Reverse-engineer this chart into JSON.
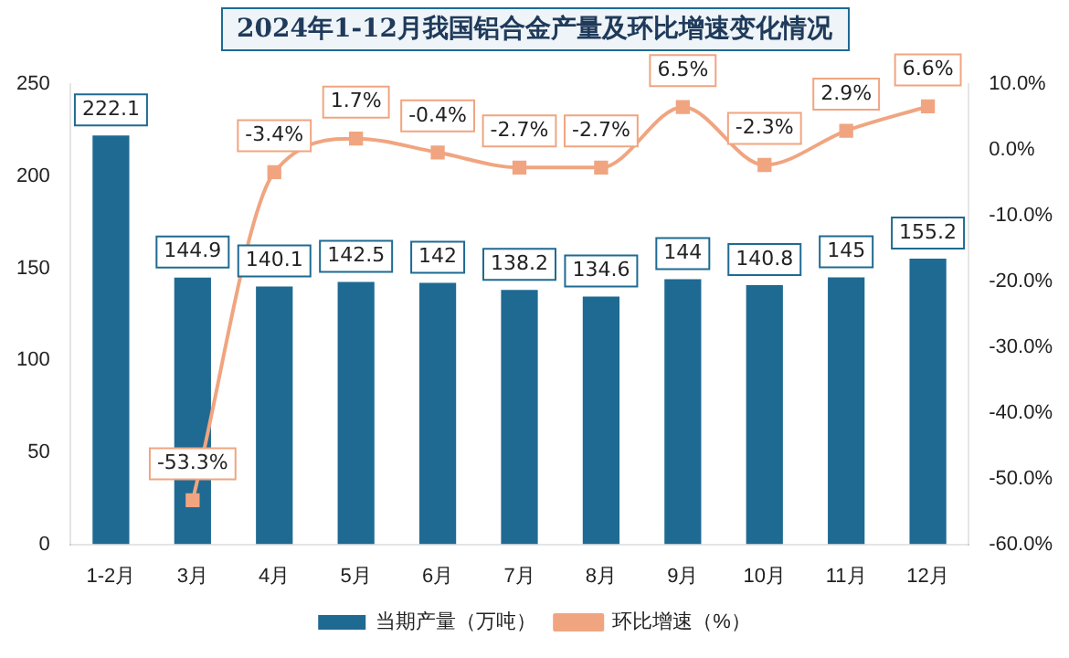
{
  "chart_data": {
    "type": "bar",
    "title": "2024年1-12月我国铝合金产量及环比增速变化情况",
    "categories": [
      "1-2月",
      "3月",
      "4月",
      "5月",
      "6月",
      "7月",
      "8月",
      "9月",
      "10月",
      "11月",
      "12月"
    ],
    "series": [
      {
        "name": "当期产量（万吨）",
        "color": "#1f6a92",
        "values": [
          222.1,
          144.9,
          140.1,
          142.5,
          142,
          138.2,
          134.6,
          144,
          140.8,
          145,
          155.2
        ]
      },
      {
        "name": "环比增速（%）",
        "type": "line",
        "axis": "y2",
        "color": "#f0a580",
        "marker": "square",
        "values": [
          null,
          -53.3,
          -3.4,
          1.7,
          -0.4,
          -2.7,
          -2.7,
          6.5,
          -2.3,
          2.9,
          6.6
        ],
        "value_labels": [
          null,
          "-53.3%",
          "-3.4%",
          "1.7%",
          "-0.4%",
          "-2.7%",
          "-2.7%",
          "6.5%",
          "-2.3%",
          "2.9%",
          "6.6%"
        ]
      }
    ],
    "ylim": [
      0,
      250
    ],
    "yticks": [
      0,
      50,
      100,
      150,
      200,
      250
    ],
    "y2lim": [
      -60,
      10
    ],
    "y2ticks": [
      {
        "value": -60,
        "label": "-60.0%"
      },
      {
        "value": -50,
        "label": "-50.0%"
      },
      {
        "value": -40,
        "label": "-40.0%"
      },
      {
        "value": -30,
        "label": "-30.0%"
      },
      {
        "value": -20,
        "label": "-20.0%"
      },
      {
        "value": -10,
        "label": "-10.0%"
      },
      {
        "value": 0,
        "label": "0.0%"
      },
      {
        "value": 10,
        "label": "10.0%"
      }
    ],
    "data_labels": true,
    "legend": "bottom",
    "grid": false
  }
}
